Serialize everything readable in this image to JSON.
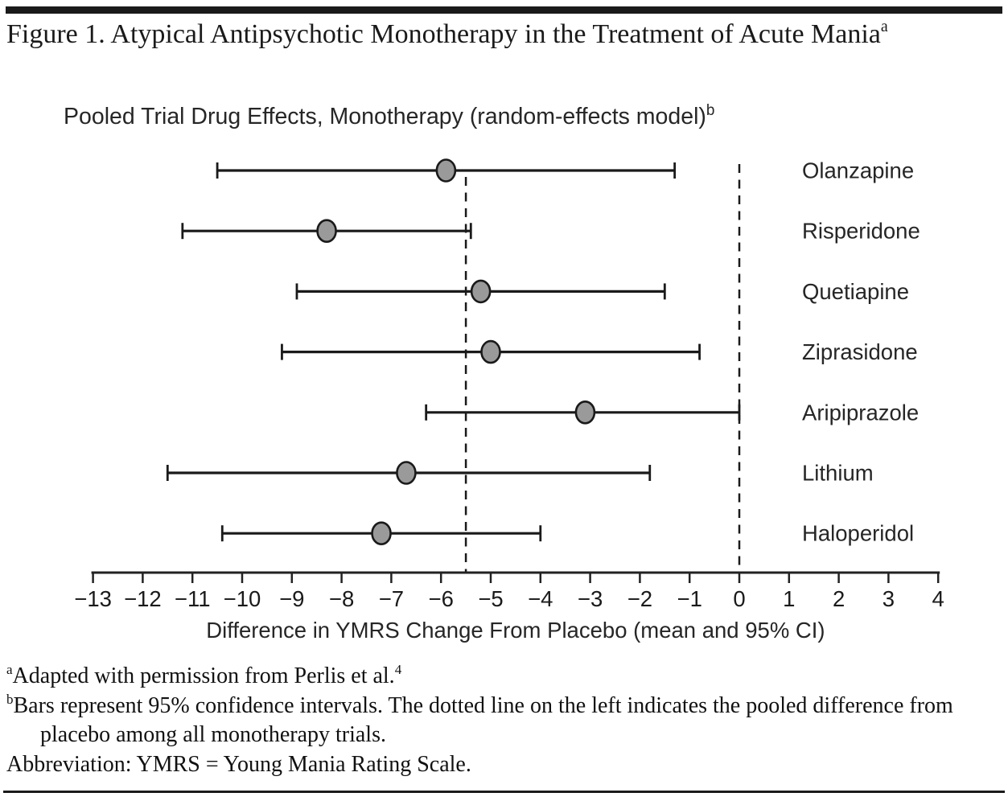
{
  "page": {
    "background": "#ffffff",
    "ink": "#1a1a1a"
  },
  "figure_title": {
    "text": "Figure 1. Atypical Antipsychotic Monotherapy in the Treatment of Acute Mania",
    "sup": "a"
  },
  "chart_data": {
    "type": "forest",
    "subtitle": "Pooled Trial Drug Effects, Monotherapy (random-effects model)",
    "subtitle_sup": "b",
    "xlabel": "Difference in YMRS Change From Placebo (mean and 95% CI)",
    "xlim": [
      -13,
      4
    ],
    "xticks": [
      -13,
      -12,
      -11,
      -10,
      -9,
      -8,
      -7,
      -6,
      -5,
      -4,
      -3,
      -2,
      -1,
      0,
      1,
      2,
      3,
      4
    ],
    "xtick_labels": [
      "−13",
      "−12",
      "−11",
      "−10",
      "−9",
      "−8",
      "−7",
      "−6",
      "−5",
      "−4",
      "−3",
      "−2",
      "−1",
      "0",
      "1",
      "2",
      "3",
      "4"
    ],
    "grid": false,
    "legend": false,
    "series": [
      {
        "label": "Olanzapine",
        "mean": -5.9,
        "ci_low": -10.5,
        "ci_high": -1.3
      },
      {
        "label": "Risperidone",
        "mean": -8.3,
        "ci_low": -11.2,
        "ci_high": -5.4
      },
      {
        "label": "Quetiapine",
        "mean": -5.2,
        "ci_low": -8.9,
        "ci_high": -1.5
      },
      {
        "label": "Ziprasidone",
        "mean": -5.0,
        "ci_low": -9.2,
        "ci_high": -0.8
      },
      {
        "label": "Aripiprazole",
        "mean": -3.1,
        "ci_low": -6.3,
        "ci_high": 0.0
      },
      {
        "label": "Lithium",
        "mean": -6.7,
        "ci_low": -11.5,
        "ci_high": -1.8
      },
      {
        "label": "Haloperidol",
        "mean": -7.2,
        "ci_low": -10.4,
        "ci_high": -4.0
      }
    ],
    "reference_lines": [
      {
        "name": "pooled-monotherapy-difference",
        "value": -5.5,
        "style": "dashed"
      },
      {
        "name": "zero",
        "value": 0,
        "style": "dashed"
      }
    ],
    "marker": {
      "shape": "ellipse",
      "fill": "#9a9a9a",
      "stroke": "#1a1a1a"
    }
  },
  "footnotes": {
    "a": {
      "sup": "a",
      "text": "Adapted with permission from Perlis et al.",
      "ref": "4"
    },
    "b": {
      "sup": "b",
      "text": "Bars represent 95% confidence intervals. The dotted line on the left indicates the pooled difference from placebo among all monotherapy trials."
    },
    "abbr": {
      "text": "Abbreviation: YMRS = Young Mania Rating Scale."
    }
  }
}
